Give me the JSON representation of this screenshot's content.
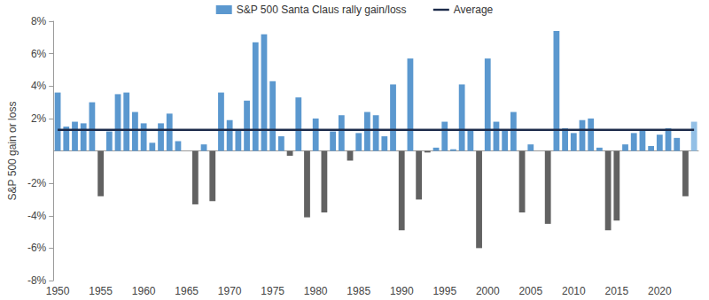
{
  "chart_data": {
    "type": "bar",
    "y_label": "S&P 500 gain or loss",
    "legend": "top",
    "grid": false,
    "categories": [
      "1950",
      null,
      null,
      null,
      null,
      "1955",
      null,
      null,
      null,
      null,
      "1960",
      null,
      null,
      null,
      null,
      "1965",
      null,
      null,
      null,
      null,
      "1970",
      null,
      null,
      null,
      null,
      "1975",
      null,
      null,
      null,
      null,
      "1980",
      null,
      null,
      null,
      null,
      "1985",
      null,
      null,
      null,
      null,
      "1990",
      null,
      null,
      null,
      null,
      "1995",
      null,
      null,
      null,
      null,
      "2000",
      null,
      null,
      null,
      null,
      "2005",
      null,
      null,
      null,
      null,
      "2010",
      null,
      null,
      null,
      null,
      "2015",
      null,
      null,
      null,
      null,
      "2020",
      null,
      null,
      null,
      null
    ],
    "series": [
      {
        "name": "S&P 500 Santa Claus rally gain/loss",
        "type": "bar",
        "color": "#5b98cf",
        "values": [
          3.6,
          1.5,
          1.8,
          1.7,
          3.0,
          -2.8,
          1.2,
          3.5,
          3.6,
          2.4,
          1.7,
          0.5,
          1.7,
          2.3,
          0.6,
          0.0,
          -3.3,
          0.4,
          -3.1,
          3.6,
          1.9,
          1.3,
          3.1,
          6.7,
          7.2,
          4.3,
          0.9,
          -0.3,
          3.3,
          -4.1,
          2.0,
          -3.8,
          1.2,
          2.2,
          -0.6,
          1.1,
          2.4,
          2.2,
          0.9,
          4.1,
          -4.9,
          5.7,
          -3.0,
          -0.1,
          0.2,
          1.8,
          0.1,
          4.1,
          1.3,
          -6.0,
          5.7,
          1.8,
          1.3,
          2.4,
          -3.8,
          0.4,
          0.0,
          -4.5,
          7.4,
          1.4,
          1.1,
          1.9,
          2.0,
          0.2,
          -4.9,
          -4.3,
          0.4,
          1.1,
          1.3,
          0.3,
          1.0,
          1.4,
          0.8,
          -2.8,
          1.8
        ],
        "colors": [
          "#5b98cf",
          "#5b98cf",
          "#5b98cf",
          "#5b98cf",
          "#5b98cf",
          "#626262",
          "#5b98cf",
          "#5b98cf",
          "#5b98cf",
          "#5b98cf",
          "#5b98cf",
          "#5b98cf",
          "#5b98cf",
          "#5b98cf",
          "#5b98cf",
          "#5b98cf",
          "#626262",
          "#5b98cf",
          "#626262",
          "#5b98cf",
          "#5b98cf",
          "#5b98cf",
          "#5b98cf",
          "#5b98cf",
          "#5b98cf",
          "#5b98cf",
          "#5b98cf",
          "#626262",
          "#5b98cf",
          "#626262",
          "#5b98cf",
          "#626262",
          "#5b98cf",
          "#5b98cf",
          "#626262",
          "#5b98cf",
          "#5b98cf",
          "#5b98cf",
          "#5b98cf",
          "#5b98cf",
          "#626262",
          "#5b98cf",
          "#626262",
          "#626262",
          "#5b98cf",
          "#5b98cf",
          "#5b98cf",
          "#5b98cf",
          "#5b98cf",
          "#626262",
          "#5b98cf",
          "#5b98cf",
          "#5b98cf",
          "#5b98cf",
          "#626262",
          "#5b98cf",
          "#5b98cf",
          "#626262",
          "#5b98cf",
          "#5b98cf",
          "#5b98cf",
          "#5b98cf",
          "#5b98cf",
          "#5b98cf",
          "#626262",
          "#626262",
          "#5b98cf",
          "#5b98cf",
          "#5b98cf",
          "#5b98cf",
          "#5b98cf",
          "#5b98cf",
          "#5b98cf",
          "#626262",
          "#93c0e6"
        ]
      },
      {
        "name": "Average",
        "type": "line",
        "color": "#1c2b4a",
        "line_style": "solid",
        "marker": "none",
        "values": [
          1.3,
          1.3,
          1.3,
          1.3,
          1.3,
          1.3,
          1.3,
          1.3,
          1.3,
          1.3,
          1.3,
          1.3,
          1.3,
          1.3,
          1.3,
          1.3,
          1.3,
          1.3,
          1.3,
          1.3,
          1.3,
          1.3,
          1.3,
          1.3,
          1.3,
          1.3,
          1.3,
          1.3,
          1.3,
          1.3,
          1.3,
          1.3,
          1.3,
          1.3,
          1.3,
          1.3,
          1.3,
          1.3,
          1.3,
          1.3,
          1.3,
          1.3,
          1.3,
          1.3,
          1.3,
          1.3,
          1.3,
          1.3,
          1.3,
          1.3,
          1.3,
          1.3,
          1.3,
          1.3,
          1.3,
          1.3,
          1.3,
          1.3,
          1.3,
          1.3,
          1.3,
          1.3,
          1.3,
          1.3,
          1.3,
          1.3,
          1.3,
          1.3,
          1.3,
          1.3,
          1.3,
          1.3,
          1.3,
          1.3,
          1.3
        ]
      }
    ],
    "ylim": [
      -8,
      8
    ],
    "yticks": [
      {
        "value": 8,
        "label": "8%"
      },
      {
        "value": 6,
        "label": "6%"
      },
      {
        "value": 4,
        "label": "4%"
      },
      {
        "value": 2,
        "label": "2%"
      },
      {
        "value": -2,
        "label": "-2%"
      },
      {
        "value": -4,
        "label": "-4%"
      },
      {
        "value": -6,
        "label": "-6%"
      },
      {
        "value": -8,
        "label": "-8%"
      }
    ]
  }
}
